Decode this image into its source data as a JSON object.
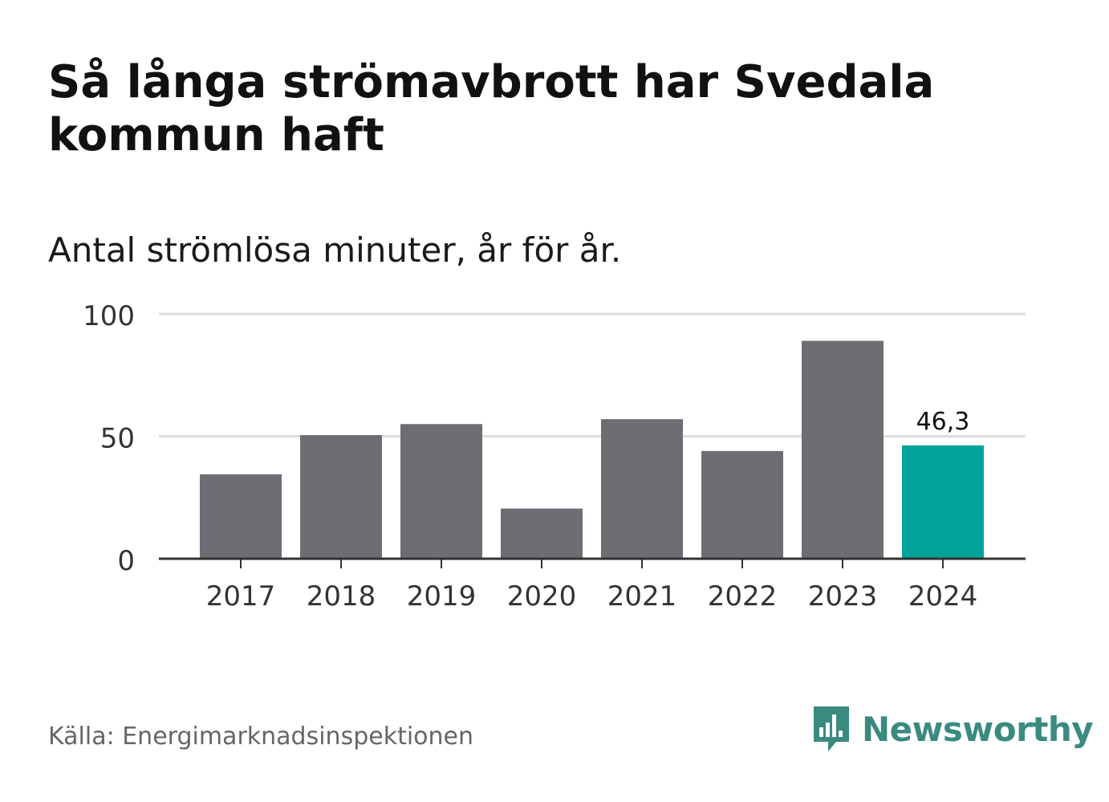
{
  "header": {
    "title": "Så långa strömavbrott har Svedala kommun haft",
    "subtitle": "Antal strömlösa minuter, år för år."
  },
  "footer": {
    "source": "Källa: Energimarknadsinspektionen",
    "brand": "Newsworthy",
    "brand_icon": "bar-chart-speech-bubble-icon"
  },
  "colors": {
    "bar": "#6e6d73",
    "highlight": "#00a39a",
    "gridline": "#dddddd",
    "axis": "#333333",
    "brand": "#3a8a80"
  },
  "chart_data": {
    "type": "bar",
    "title": "Så långa strömavbrott har Svedala kommun haft",
    "subtitle": "Antal strömlösa minuter, år för år.",
    "xlabel": "",
    "ylabel": "",
    "categories": [
      "2017",
      "2018",
      "2019",
      "2020",
      "2021",
      "2022",
      "2023",
      "2024"
    ],
    "values": [
      34.5,
      50.5,
      55,
      20.5,
      57,
      44,
      89,
      46.3
    ],
    "highlight_index": 7,
    "data_labels": [
      {
        "index": 7,
        "text": "46,3"
      }
    ],
    "ylim": [
      0,
      100
    ],
    "yticks": [
      0,
      50,
      100
    ],
    "grid": true,
    "legend": "none"
  }
}
